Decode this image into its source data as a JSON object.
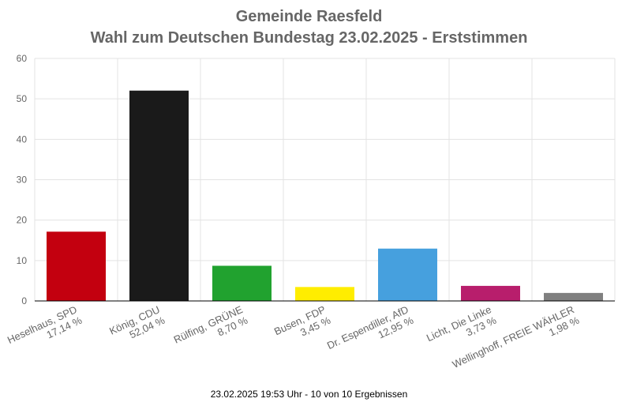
{
  "title_line1": "Gemeinde Raesfeld",
  "title_line2": "Wahl zum Deutschen Bundestag 23.02.2025  - Erststimmen",
  "footer": "23.02.2025 19:53 Uhr - 10 von 10 Ergebnissen",
  "chart_data": {
    "type": "bar",
    "categories": [
      "Heselhaus, SPD",
      "König, CDU",
      "Rülfing, GRÜNE",
      "Busen, FDP",
      "Dr. Espendiller, AfD",
      "Licht, Die Linke",
      "Wellinghoff, FREIE WÄHLER"
    ],
    "values": [
      17.14,
      52.04,
      8.7,
      3.45,
      12.95,
      3.73,
      1.98
    ],
    "value_labels": [
      "17,14 %",
      "52,04 %",
      "8,70 %",
      "3,45 %",
      "12,95 %",
      "3,73 %",
      "1,98 %"
    ],
    "colors": [
      "#c3000f",
      "#1a1a1a",
      "#21a22f",
      "#ffed00",
      "#46a0de",
      "#b81e6c",
      "#808080"
    ],
    "yticks": [
      "0",
      "10",
      "20",
      "30",
      "40",
      "50",
      "60"
    ],
    "ylim": [
      0,
      60
    ],
    "grid": true
  }
}
